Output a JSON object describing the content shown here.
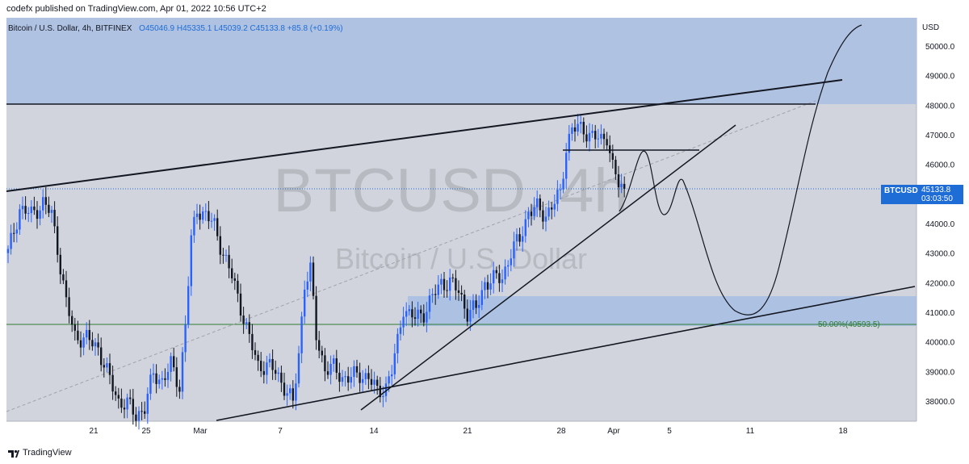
{
  "header": {
    "published": "codefx published on TradingView.com, Apr 01, 2022 10:56 UTC+2"
  },
  "legend": {
    "symbol": "Bitcoin / U.S. Dollar, 4h, BITFINEX",
    "open": "O45046.9",
    "high": "H45335.1",
    "low": "L45039.2",
    "close": "C45133.8",
    "change": "+85.8 (+0.19%)"
  },
  "watermark": {
    "ticker": "BTCUSD, 4h",
    "name": "Bitcoin / U.S. Dollar"
  },
  "price_axis": {
    "currency": "USD"
  },
  "last_price": {
    "symbol": "BTCUSD",
    "price": "45133.8",
    "countdown": "03:03:50"
  },
  "fib_label": "50.00%(40593.5)",
  "footer": {
    "brand": "TradingView"
  },
  "colors": {
    "background": "#d1d4dc",
    "zone": "#b0c2e2",
    "candle": "#131722",
    "accent": "#1e6dd6",
    "fib": "#2e7d32"
  },
  "chart_data": {
    "type": "candlestick",
    "title": "Bitcoin / U.S. Dollar, 4h, BITFINEX",
    "ylabel": "USD",
    "ylim": [
      37000,
      51200
    ],
    "y_ticks": [
      38000,
      39000,
      40000,
      41000,
      42000,
      43000,
      44000,
      45000,
      46000,
      47000,
      48000,
      49000,
      50000
    ],
    "x_ticks": [
      "21",
      "25",
      "Mar",
      "7",
      "14",
      "21",
      "28",
      "Apr",
      "5",
      "11",
      "18"
    ],
    "close_path": [
      [
        0,
        43000
      ],
      [
        4,
        44500
      ],
      [
        8,
        44300
      ],
      [
        12,
        44700
      ],
      [
        15,
        44300
      ],
      [
        17,
        43200
      ],
      [
        20,
        41300
      ],
      [
        23,
        40200
      ],
      [
        27,
        40100
      ],
      [
        31,
        39800
      ],
      [
        35,
        38700
      ],
      [
        38,
        38000
      ],
      [
        41,
        37900
      ],
      [
        44,
        37500
      ],
      [
        47,
        37800
      ],
      [
        50,
        38900
      ],
      [
        53,
        38700
      ],
      [
        56,
        39200
      ],
      [
        59,
        38500
      ],
      [
        61,
        40600
      ],
      [
        63,
        43400
      ],
      [
        65,
        44500
      ],
      [
        68,
        44300
      ],
      [
        71,
        43900
      ],
      [
        74,
        43000
      ],
      [
        77,
        42200
      ],
      [
        80,
        41200
      ],
      [
        83,
        40100
      ],
      [
        86,
        39200
      ],
      [
        89,
        39200
      ],
      [
        92,
        39000
      ],
      [
        95,
        38500
      ],
      [
        98,
        37900
      ],
      [
        100,
        39600
      ],
      [
        102,
        42000
      ],
      [
        104,
        42400
      ],
      [
        106,
        40200
      ],
      [
        109,
        39100
      ],
      [
        112,
        39100
      ],
      [
        115,
        38800
      ],
      [
        118,
        38800
      ],
      [
        121,
        38900
      ],
      [
        124,
        38800
      ],
      [
        127,
        38300
      ],
      [
        130,
        38500
      ],
      [
        132,
        39000
      ],
      [
        134,
        40000
      ],
      [
        136,
        41200
      ],
      [
        138,
        40900
      ],
      [
        140,
        40800
      ],
      [
        143,
        41000
      ],
      [
        146,
        41500
      ],
      [
        149,
        42000
      ],
      [
        152,
        42000
      ],
      [
        155,
        41700
      ],
      [
        158,
        41000
      ],
      [
        161,
        41100
      ],
      [
        164,
        42000
      ],
      [
        167,
        42100
      ],
      [
        170,
        42200
      ],
      [
        173,
        43000
      ],
      [
        176,
        43500
      ],
      [
        179,
        44400
      ],
      [
        182,
        44500
      ],
      [
        185,
        44300
      ],
      [
        188,
        44700
      ],
      [
        190,
        45000
      ],
      [
        192,
        46600
      ],
      [
        194,
        47200
      ],
      [
        196,
        47200
      ],
      [
        198,
        47200
      ],
      [
        200,
        47000
      ],
      [
        202,
        46900
      ],
      [
        204,
        46800
      ],
      [
        206,
        47000
      ],
      [
        208,
        45900
      ],
      [
        210,
        45300
      ],
      [
        212,
        45100
      ]
    ],
    "annotations": {
      "resistance_zone": [
        48000,
        51200
      ],
      "horizontal_line": 48000,
      "upper_trendline": [
        [
          "~Feb 17",
          45000
        ],
        [
          "~Apr 18",
          48800
        ]
      ],
      "lower_trendline": [
        [
          "~Mar 1",
          37700
        ],
        [
          "~Apr 22",
          41900
        ]
      ],
      "rising_support": [
        [
          "~Mar 13",
          37700
        ],
        [
          "~Apr 8",
          46300
        ]
      ],
      "dashed_projection": [
        [
          "~Feb 17",
          38000
        ],
        [
          "~Apr 16",
          48150
        ]
      ],
      "short_horizontal": 46500,
      "demand_zone": [
        40500,
        41500
      ],
      "fib_level": {
        "label": "50.00%(40593.5)",
        "value": 40593.5
      },
      "projection_path": [
        45100,
        46300,
        44400,
        45500,
        42000,
        40900,
        44500,
        51000
      ]
    }
  }
}
